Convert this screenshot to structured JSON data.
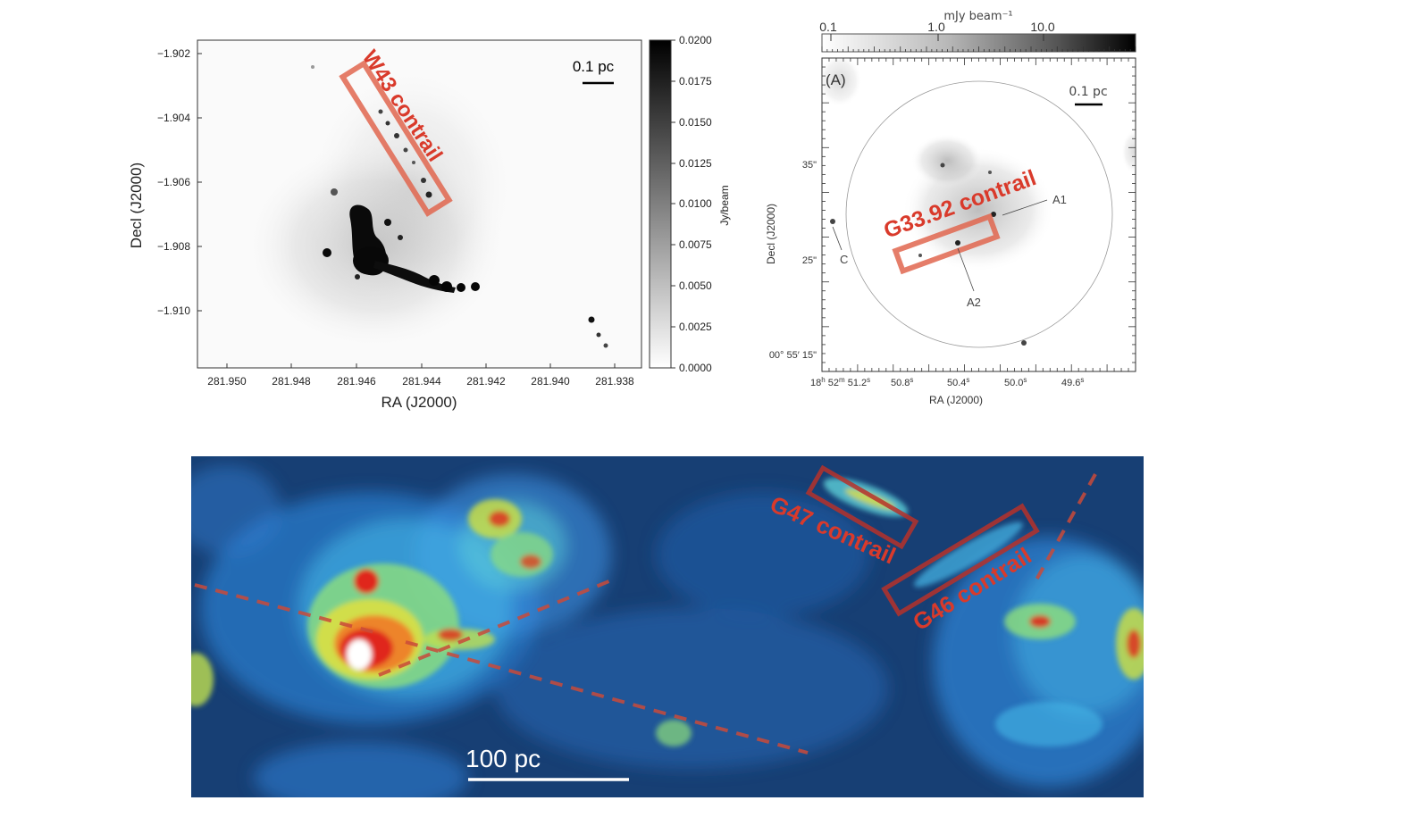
{
  "panel_a": {
    "ylabel": "Decl (J2000)",
    "xlabel": "RA (J2000)",
    "yticks": [
      "−1.902",
      "−1.904",
      "−1.906",
      "−1.908",
      "−1.910"
    ],
    "xticks": [
      "281.950",
      "281.948",
      "281.946",
      "281.944",
      "281.942",
      "281.940",
      "281.938"
    ],
    "colorbar_label": "Jy/beam",
    "colorbar_ticks": [
      "0.0200",
      "0.0175",
      "0.0150",
      "0.0125",
      "0.0100",
      "0.0075",
      "0.0050",
      "0.0025",
      "0.0000"
    ],
    "scalebar": "0.1 pc",
    "annotation": "W43 contrail",
    "annotation_color": "#d93a2b"
  },
  "panel_b": {
    "colorbar_title": "mJy beam⁻¹",
    "colorbar_ticks": [
      "0.1",
      "1.0",
      "10.0"
    ],
    "panel_tag": "(A)",
    "scalebar": "0.1 pc",
    "ylabel": "Decl (J2000)",
    "xlabel": "RA (J2000)",
    "yticks": [
      "35\"",
      "25\""
    ],
    "ytick_bottom": "00° 55′ 15\"",
    "xticks": [
      "18h 52m 51.2s",
      "50.8s",
      "50.4s",
      "50.0s",
      "49.6s"
    ],
    "xtick_parts": {
      "first_h": "18",
      "first_m": "52",
      "first_s": "51.2",
      "others": [
        "50.8",
        "50.4",
        "50.0",
        "49.6"
      ]
    },
    "labels": {
      "a1": "A1",
      "a2": "A2",
      "c": "C"
    },
    "annotation": "G33.92 contrail",
    "annotation_color": "#d93a2b"
  },
  "panel_c": {
    "scalebar": "100 pc",
    "labels": {
      "g47": "G47 contrail",
      "g46": "G46 contrail"
    },
    "background_color": "#173f74",
    "annotation_color": "#d93a2b"
  }
}
